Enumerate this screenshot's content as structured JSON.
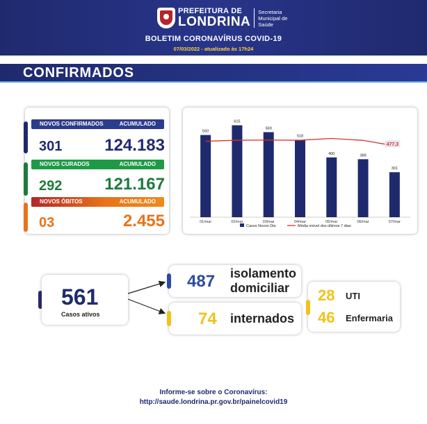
{
  "header": {
    "pref_small": "PREFEITURA DE",
    "pref_big": "LONDRINA",
    "secretaria_1": "Secretaria",
    "secretaria_2": "Municipal de",
    "secretaria_3": "Saúde",
    "bulletin_title": "BOLETIM CORONAVÍRUS COVID-19",
    "date_line": "07/03/2022 - atualizado às 17h24"
  },
  "banner": {
    "title": "CONFIRMADOS"
  },
  "stats": {
    "confirmados": {
      "label": "NOVOS CONFIRMADOS",
      "acc_label": "ACUMULADO",
      "new": "301",
      "total": "124.183",
      "color": "#2c3c8c"
    },
    "curados": {
      "label": "NOVOS CURADOS",
      "acc_label": "ACUMULADO",
      "new": "292",
      "total": "121.167",
      "color": "#1e9a47"
    },
    "obitos": {
      "label": "NOVOS ÓBITOS",
      "acc_label": "ACUMULADO",
      "new": "03",
      "total": "2.455",
      "color": "#e8731a"
    }
  },
  "chart_data": {
    "type": "bar",
    "categories": [
      "01/mar",
      "02/mar",
      "03/mar",
      "04/mar",
      "05/mar",
      "06/mar",
      "07/mar"
    ],
    "series": [
      {
        "name": "Casos Novos Dia",
        "type": "bar",
        "values": [
          550,
          615,
          569,
          518,
          400,
          388,
          301
        ],
        "color": "#1f2a6e"
      },
      {
        "name": "Média móvel dos últimos 7 dias",
        "type": "line",
        "values": [
          508,
          515,
          516,
          515,
          527,
          514,
          477.3
        ],
        "color": "#d9332b"
      }
    ],
    "last_avg_label": "477,3",
    "ylim": [
      0,
      650
    ],
    "grid": false,
    "legend": "bottom"
  },
  "active": {
    "number": "561",
    "label": "Casos ativos"
  },
  "isolation": {
    "number": "487",
    "label_1": "isolamento",
    "label_2": "domiciliar"
  },
  "hospital": {
    "number": "74",
    "label": "internados"
  },
  "beds": {
    "uti_number": "28",
    "uti_label": "UTI",
    "enf_number": "46",
    "enf_label": "Enfermaria"
  },
  "footer": {
    "line_1": "Informe-se sobre o Coronavírus:",
    "line_2": "http://saude.londrina.pr.gov.br/painelcovid19"
  },
  "colors": {
    "navy": "#1f2a6e",
    "blue_num": "#2c4ba0",
    "yellow": "#f2c21b",
    "accent_line": "#2c2a6e"
  }
}
